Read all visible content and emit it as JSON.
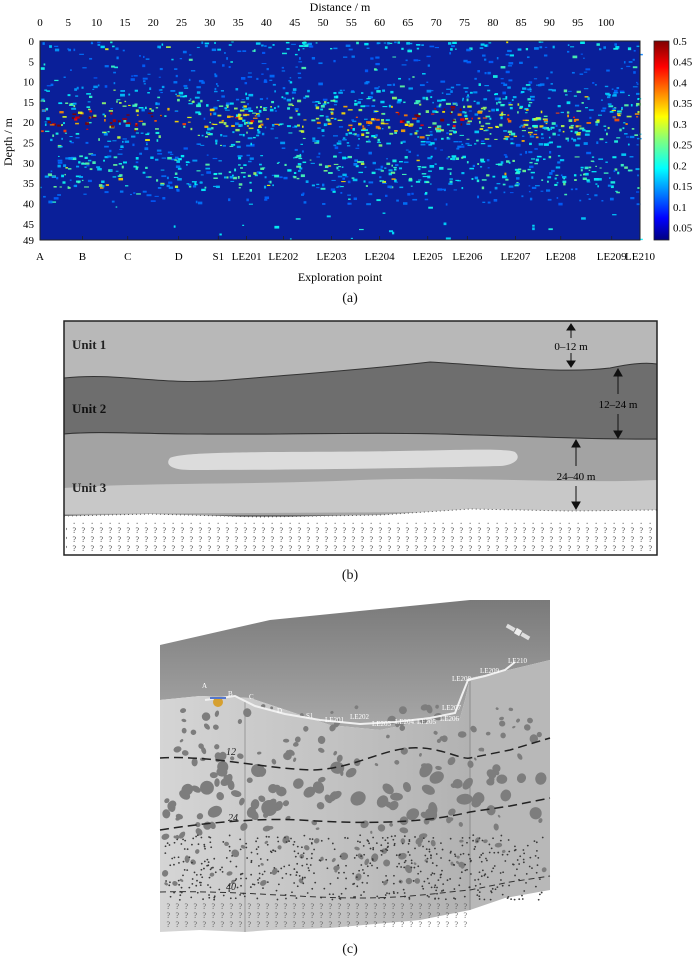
{
  "panel_a": {
    "chart_data": {
      "type": "heatmap",
      "title": "",
      "xlabel": "Distance / m",
      "ylabel": "Depth / m",
      "xlabel_bottom": "Exploration point",
      "xlim": [
        0,
        106
      ],
      "ylim": [
        0,
        49
      ],
      "x_ticks": [
        0,
        5,
        10,
        15,
        20,
        25,
        30,
        35,
        40,
        45,
        50,
        55,
        60,
        65,
        70,
        75,
        80,
        85,
        90,
        95,
        100
      ],
      "y_ticks": [
        0,
        5,
        10,
        15,
        20,
        25,
        30,
        35,
        40,
        45,
        49
      ],
      "exploration_points": [
        {
          "label": "A",
          "x": 0
        },
        {
          "label": "B",
          "x": 7.5
        },
        {
          "label": "C",
          "x": 15.5
        },
        {
          "label": "D",
          "x": 24.5
        },
        {
          "label": "S1",
          "x": 31.5
        },
        {
          "label": "LE201",
          "x": 36.5
        },
        {
          "label": "LE202",
          "x": 43
        },
        {
          "label": "LE203",
          "x": 51.5
        },
        {
          "label": "LE204",
          "x": 60
        },
        {
          "label": "LE205",
          "x": 68.5
        },
        {
          "label": "LE206",
          "x": 75.5
        },
        {
          "label": "LE207",
          "x": 84
        },
        {
          "label": "LE208",
          "x": 92
        },
        {
          "label": "LE209",
          "x": 101
        },
        {
          "label": "LE210",
          "x": 106
        }
      ],
      "colorbar": {
        "ticks": [
          0.05,
          0.1,
          0.15,
          0.2,
          0.25,
          0.3,
          0.35,
          0.4,
          0.45,
          0.5
        ],
        "range": [
          0.02,
          0.5
        ],
        "colormap": "jet"
      }
    },
    "caption": "(a)"
  },
  "panel_b": {
    "units": [
      {
        "label": "Unit 1",
        "color": "#b3b3b3"
      },
      {
        "label": "Unit 2",
        "color": "#6b6b6b"
      },
      {
        "label": "Unit 3",
        "color": "#a6a6a6"
      }
    ],
    "depths": [
      "0–12 m",
      "12–24 m",
      "24–40 m"
    ],
    "caption": "(b)"
  },
  "panel_c": {
    "points": [
      "A",
      "B",
      "C",
      "D",
      "S1",
      "LE201",
      "LE202",
      "LE203",
      "LE204",
      "LE205",
      "LE206",
      "LE207",
      "LE208",
      "LE209",
      "LE210"
    ],
    "depth_marks": [
      "12",
      "24",
      "40"
    ],
    "caption": "(c)"
  }
}
